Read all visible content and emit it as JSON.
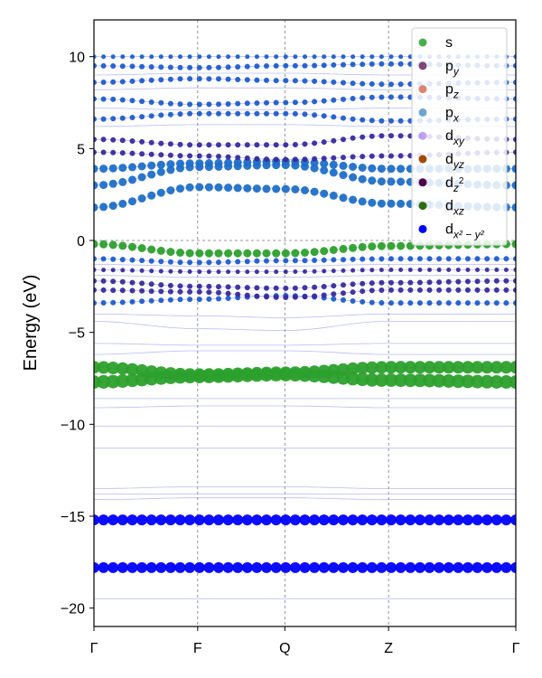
{
  "chart_data": {
    "type": "scatter",
    "title": "",
    "xlabel": "",
    "ylabel": "Energy (eV)",
    "ylim": [
      -21,
      12
    ],
    "yticks": [
      10,
      5,
      0,
      -5,
      -10,
      -15,
      -20
    ],
    "ytick_labels": [
      "10",
      "5",
      "0",
      "−5",
      "−10",
      "−15",
      "−20"
    ],
    "kpath": {
      "labels": [
        "Γ",
        "F",
        "Q",
        "Z",
        "Γ"
      ],
      "positions": [
        0,
        0.815,
        1.5,
        2.315,
        3.315
      ]
    },
    "fermi_level": 0,
    "grid": "vertical dashed at k-points",
    "legend_position": "top-right",
    "legend": [
      {
        "key": "s",
        "label": "s",
        "sub": "",
        "sup": "",
        "color": "#2ca02c",
        "alpha": 0.85
      },
      {
        "key": "py",
        "label": "p",
        "sub": "y",
        "sup": "",
        "color": "#5b1a5a",
        "alpha": 0.8
      },
      {
        "key": "pz",
        "label": "p",
        "sub": "z",
        "sup": "",
        "color": "#d2664f",
        "alpha": 0.8
      },
      {
        "key": "px",
        "label": "p",
        "sub": "x",
        "sup": "",
        "color": "#4a90c8",
        "alpha": 0.8
      },
      {
        "key": "dxy",
        "label": "d",
        "sub": "xy",
        "sup": "",
        "color": "#a77cf0",
        "alpha": 0.7
      },
      {
        "key": "dyz",
        "label": "d",
        "sub": "yz",
        "sup": "",
        "color": "#a34a00",
        "alpha": 1
      },
      {
        "key": "dz2",
        "label": "d",
        "sub": "z",
        "sup": "2",
        "color": "#4b0045",
        "alpha": 1
      },
      {
        "key": "dxz",
        "label": "d",
        "sub": "xz",
        "sup": "",
        "color": "#2e6b0d",
        "alpha": 1
      },
      {
        "key": "dx2y2",
        "label": "d",
        "sub": "x² − y²",
        "sup": "",
        "color": "#0000ff",
        "alpha": 1
      }
    ],
    "bands": [
      {
        "e": [
          -17.8,
          -17.8,
          -17.8,
          -17.8,
          -17.8
        ],
        "color": "#0000ff",
        "size": 6
      },
      {
        "e": [
          -15.2,
          -15.2,
          -15.2,
          -15.2,
          -15.2
        ],
        "color": "#0000ff",
        "size": 6
      },
      {
        "e": [
          -7.7,
          -7.4,
          -7.3,
          -7.6,
          -7.7
        ],
        "color": "#2ca02c",
        "size": 7.5
      },
      {
        "e": [
          -6.9,
          -7.3,
          -7.2,
          -6.9,
          -6.9
        ],
        "color": "#2ca02c",
        "size": 7
      },
      {
        "e": [
          -3.4,
          -3.2,
          -3.0,
          -3.4,
          -3.4
        ],
        "color": "#1f5ccc",
        "size": 3
      },
      {
        "e": [
          -2.7,
          -2.8,
          -3.1,
          -2.7,
          -2.7
        ],
        "color": "#3a2a9c",
        "size": 3
      },
      {
        "e": [
          -2.2,
          -2.5,
          -2.6,
          -2.3,
          -2.2
        ],
        "color": "#3a2a9c",
        "size": 3
      },
      {
        "e": [
          -1.6,
          -1.7,
          -1.7,
          -1.6,
          -1.6
        ],
        "color": "#3a2a9c",
        "size": 2.5
      },
      {
        "e": [
          -1.0,
          -1.2,
          -1.1,
          -1.0,
          -1.0
        ],
        "color": "#1f5ccc",
        "size": 3
      },
      {
        "e": [
          -0.2,
          -0.7,
          -0.7,
          -0.3,
          -0.2
        ],
        "color": "#2ca02c",
        "size": 4.5
      },
      {
        "e": [
          1.8,
          2.9,
          2.8,
          2.0,
          1.8
        ],
        "color": "#1f6fc8",
        "size": 4.5
      },
      {
        "e": [
          3.0,
          4.0,
          4.1,
          3.2,
          3.0
        ],
        "color": "#1f6fc8",
        "size": 4.5
      },
      {
        "e": [
          3.9,
          4.2,
          4.3,
          3.9,
          3.9
        ],
        "color": "#1f6fc8",
        "size": 4.5
      },
      {
        "e": [
          4.8,
          4.6,
          4.4,
          4.6,
          4.8
        ],
        "color": "#3a2a9c",
        "size": 3
      },
      {
        "e": [
          5.5,
          5.2,
          5.2,
          5.7,
          5.5
        ],
        "color": "#3a2a9c",
        "size": 3
      },
      {
        "e": [
          6.6,
          6.9,
          6.9,
          6.5,
          6.6
        ],
        "color": "#1f5ccc",
        "size": 3
      },
      {
        "e": [
          7.7,
          7.4,
          7.5,
          7.8,
          7.7
        ],
        "color": "#1f5ccc",
        "size": 3
      },
      {
        "e": [
          8.6,
          8.8,
          8.7,
          8.5,
          8.6
        ],
        "color": "#1f5ccc",
        "size": 3
      },
      {
        "e": [
          9.5,
          9.4,
          9.5,
          9.6,
          9.5
        ],
        "color": "#1f5ccc",
        "size": 3
      },
      {
        "e": [
          10.0,
          10.0,
          10.0,
          10.0,
          10.0
        ],
        "color": "#1f5ccc",
        "size": 2.5
      }
    ],
    "faint_bands": [
      {
        "e": [
          -19.5,
          -19.5,
          -19.5,
          -19.5,
          -19.5
        ]
      },
      {
        "e": [
          -13.5,
          -13.4,
          -13.4,
          -13.5,
          -13.5
        ]
      },
      {
        "e": [
          -13.8,
          -13.8,
          -13.8,
          -13.8,
          -13.8
        ]
      },
      {
        "e": [
          -14.1,
          -14.0,
          -14.0,
          -14.1,
          -14.1
        ]
      },
      {
        "e": [
          -11.3,
          -11.3,
          -11.3,
          -11.3,
          -11.3
        ]
      },
      {
        "e": [
          -10.1,
          -10.1,
          -10.1,
          -10.1,
          -10.1
        ]
      },
      {
        "e": [
          -9.1,
          -9.0,
          -9.0,
          -9.1,
          -9.1
        ]
      },
      {
        "e": [
          -8.6,
          -8.6,
          -8.6,
          -8.6,
          -8.6
        ]
      },
      {
        "e": [
          -6.2,
          -6.0,
          -6.0,
          -6.2,
          -6.2
        ]
      },
      {
        "e": [
          -5.6,
          -5.7,
          -5.7,
          -5.6,
          -5.6
        ]
      },
      {
        "e": [
          -4.4,
          -4.8,
          -4.9,
          -4.4,
          -4.4
        ]
      },
      {
        "e": [
          -4.0,
          -4.1,
          -4.2,
          -4.0,
          -4.0
        ]
      },
      {
        "e": [
          -1.9,
          -2.0,
          -2.0,
          -1.9,
          -1.9
        ]
      },
      {
        "e": [
          -1.3,
          -1.4,
          -1.4,
          -1.3,
          -1.3
        ]
      },
      {
        "e": [
          6.2,
          6.3,
          6.3,
          6.2,
          6.2
        ]
      },
      {
        "e": [
          7.2,
          7.1,
          7.1,
          7.2,
          7.2
        ]
      },
      {
        "e": [
          8.2,
          8.3,
          8.3,
          8.2,
          8.2
        ]
      },
      {
        "e": [
          9.0,
          9.1,
          9.1,
          9.0,
          9.0
        ]
      }
    ]
  }
}
